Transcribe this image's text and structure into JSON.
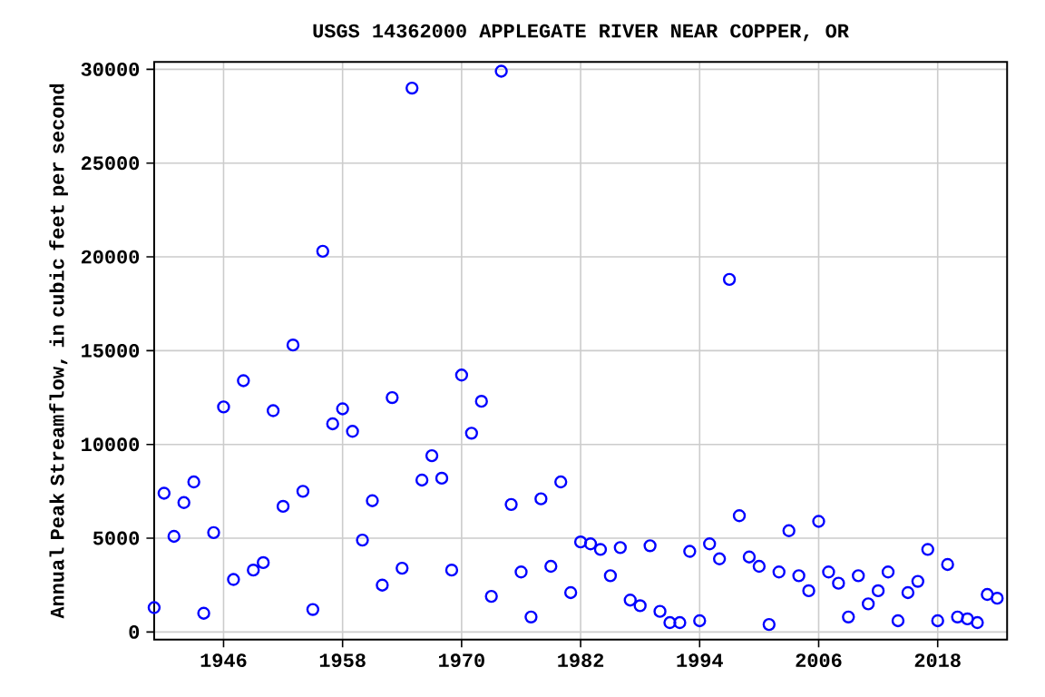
{
  "chart_data": {
    "type": "scatter",
    "title": "USGS 14362000 APPLEGATE RIVER NEAR COPPER, OR",
    "ylabel": "Annual Peak Streamflow, in cubic feet per second",
    "x": [
      1939,
      1940,
      1941,
      1942,
      1943,
      1944,
      1945,
      1946,
      1947,
      1948,
      1949,
      1950,
      1951,
      1952,
      1953,
      1954,
      1955,
      1956,
      1957,
      1958,
      1959,
      1960,
      1961,
      1962,
      1963,
      1964,
      1965,
      1966,
      1967,
      1968,
      1969,
      1970,
      1971,
      1972,
      1973,
      1974,
      1975,
      1976,
      1977,
      1978,
      1979,
      1980,
      1981,
      1982,
      1983,
      1984,
      1985,
      1986,
      1987,
      1988,
      1989,
      1990,
      1991,
      1992,
      1993,
      1994,
      1995,
      1996,
      1997,
      1998,
      1999,
      2000,
      2001,
      2002,
      2003,
      2004,
      2005,
      2006,
      2007,
      2008,
      2009,
      2010,
      2011,
      2012,
      2013,
      2014,
      2015,
      2016,
      2017,
      2018,
      2019,
      2020,
      2021,
      2022,
      2023,
      2024
    ],
    "series": [
      {
        "color": "#0000ff",
        "values": [
          1300,
          7400,
          5100,
          6900,
          8000,
          1000,
          5300,
          12000,
          2800,
          13400,
          3300,
          3700,
          11800,
          6700,
          15300,
          7500,
          1200,
          20300,
          11100,
          11900,
          10700,
          4900,
          7000,
          2500,
          12500,
          3400,
          29000,
          8100,
          9400,
          8200,
          3300,
          13700,
          10600,
          12300,
          1900,
          29900,
          6800,
          3200,
          800,
          7100,
          3500,
          8000,
          2100,
          4800,
          4700,
          4400,
          3000,
          4500,
          1700,
          1400,
          4600,
          1100,
          500,
          500,
          4300,
          600,
          4700,
          3900,
          18800,
          6200,
          4000,
          3500,
          400,
          3200,
          5400,
          3000,
          2200,
          5900,
          3200,
          2600,
          800,
          3000,
          1500,
          2200,
          3200,
          600,
          2100,
          2700,
          4400,
          600,
          3600,
          800,
          700,
          500,
          2000,
          1800
        ]
      }
    ],
    "xlim": [
      1939,
      2025
    ],
    "ylim": [
      -400,
      30400
    ],
    "xticks": [
      1946,
      1958,
      1970,
      1982,
      1994,
      2006,
      2018
    ],
    "yticks": [
      0,
      5000,
      10000,
      15000,
      20000,
      25000,
      30000
    ],
    "grid": true,
    "marker": "circle"
  }
}
